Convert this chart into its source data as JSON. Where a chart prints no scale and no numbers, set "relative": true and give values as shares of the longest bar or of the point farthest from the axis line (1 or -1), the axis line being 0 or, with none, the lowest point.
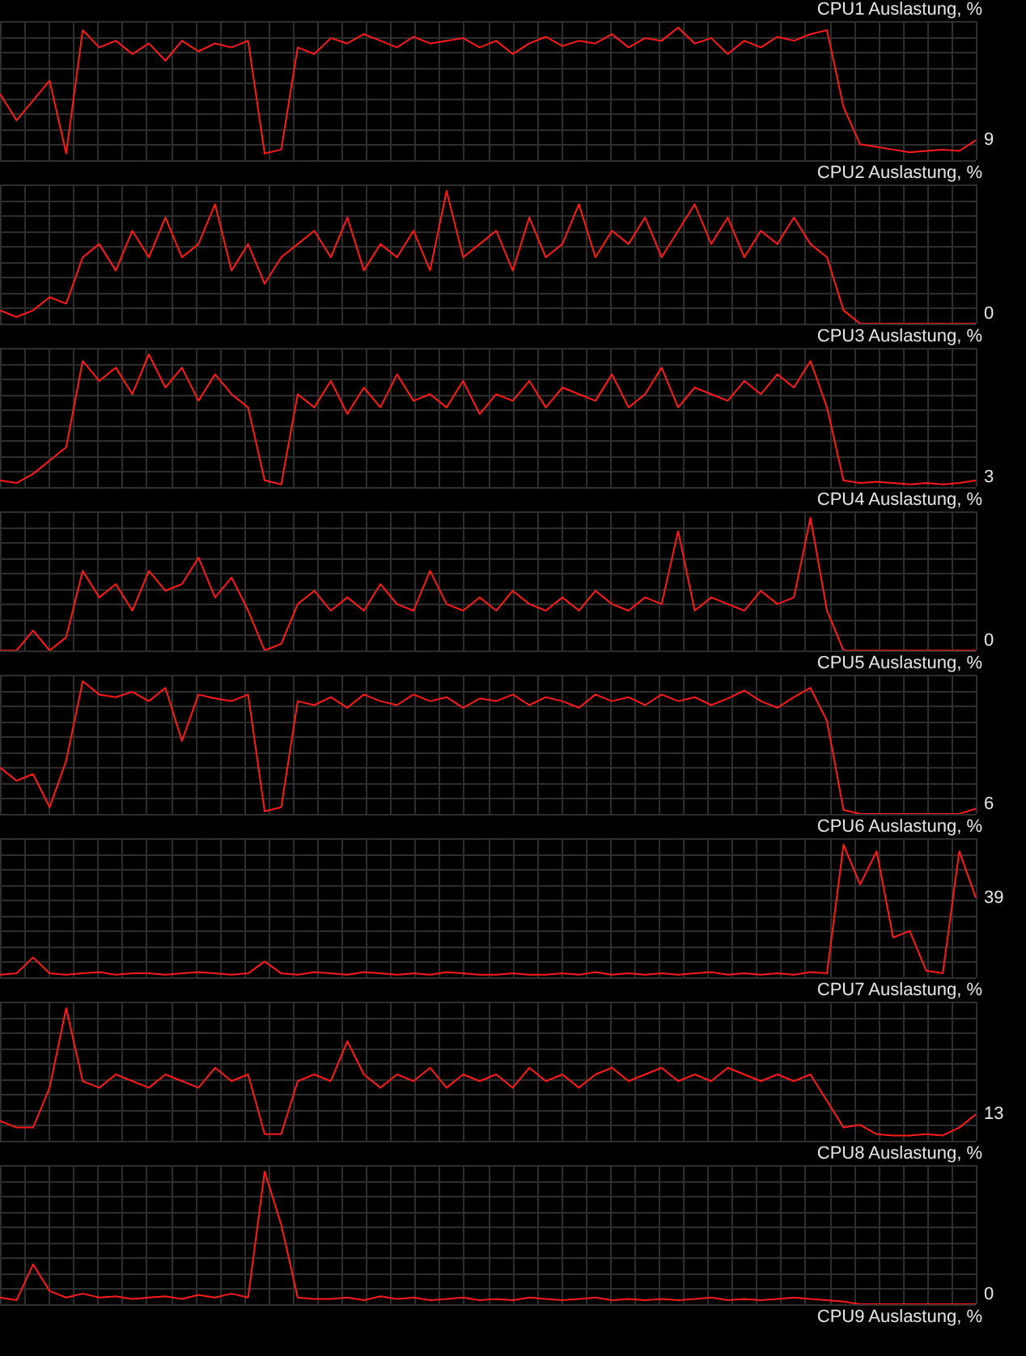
{
  "chart_data": [
    {
      "type": "line",
      "title": "CPU1 Auslastung, %",
      "relative": true,
      "grid": true,
      "annotations": [
        "9"
      ],
      "categories": [
        null,
        null,
        null,
        null,
        null,
        null,
        null,
        null,
        null,
        null,
        null,
        null,
        null,
        null,
        null,
        null,
        null,
        null,
        null,
        null,
        null,
        null,
        null,
        null,
        null,
        null,
        null,
        null,
        null,
        null,
        null,
        null,
        null,
        null,
        null,
        null,
        null,
        null,
        null,
        null,
        null,
        null,
        null,
        null,
        null,
        null,
        null,
        null,
        null,
        null,
        null,
        null,
        null,
        null,
        null,
        null,
        null,
        null,
        null,
        null
      ],
      "series": [
        {
          "color": "#ff1a1a",
          "values": [
            0.5,
            0.3,
            0.45,
            0.6,
            0.05,
            0.98,
            0.85,
            0.9,
            0.8,
            0.88,
            0.75,
            0.9,
            0.82,
            0.88,
            0.85,
            0.9,
            0.05,
            0.08,
            0.85,
            0.8,
            0.92,
            0.88,
            0.95,
            0.9,
            0.85,
            0.93,
            0.88,
            0.9,
            0.92,
            0.85,
            0.9,
            0.8,
            0.88,
            0.93,
            0.86,
            0.9,
            0.88,
            0.95,
            0.85,
            0.92,
            0.9,
            1,
            0.88,
            0.92,
            0.8,
            0.9,
            0.85,
            0.93,
            0.9,
            0.95,
            0.98,
            0.4,
            0.12,
            0.1,
            0.08,
            0.06,
            0.07,
            0.08,
            0.07,
            0.15
          ]
        }
      ]
    },
    {
      "type": "line",
      "title": "CPU2 Auslastung, %",
      "relative": true,
      "grid": true,
      "annotations": [
        "0"
      ],
      "categories": [
        null,
        null,
        null,
        null,
        null,
        null,
        null,
        null,
        null,
        null,
        null,
        null,
        null,
        null,
        null,
        null,
        null,
        null,
        null,
        null,
        null,
        null,
        null,
        null,
        null,
        null,
        null,
        null,
        null,
        null,
        null,
        null,
        null,
        null,
        null,
        null,
        null,
        null,
        null,
        null,
        null,
        null,
        null,
        null,
        null,
        null,
        null,
        null,
        null,
        null,
        null,
        null,
        null,
        null,
        null,
        null,
        null,
        null,
        null,
        null
      ],
      "series": [
        {
          "color": "#ff1a1a",
          "values": [
            0.1,
            0.05,
            0.1,
            0.2,
            0.15,
            0.5,
            0.6,
            0.4,
            0.7,
            0.5,
            0.8,
            0.5,
            0.6,
            0.9,
            0.4,
            0.6,
            0.3,
            0.5,
            0.6,
            0.7,
            0.5,
            0.8,
            0.4,
            0.6,
            0.5,
            0.7,
            0.4,
            1,
            0.5,
            0.6,
            0.7,
            0.4,
            0.8,
            0.5,
            0.6,
            0.9,
            0.5,
            0.7,
            0.6,
            0.8,
            0.5,
            0.7,
            0.9,
            0.6,
            0.8,
            0.5,
            0.7,
            0.6,
            0.8,
            0.6,
            0.5,
            0.1,
            0,
            0,
            0,
            0,
            0,
            0,
            0,
            0
          ]
        }
      ]
    },
    {
      "type": "line",
      "title": "CPU3 Auslastung, %",
      "relative": true,
      "grid": true,
      "annotations": [
        "3"
      ],
      "categories": [
        null,
        null,
        null,
        null,
        null,
        null,
        null,
        null,
        null,
        null,
        null,
        null,
        null,
        null,
        null,
        null,
        null,
        null,
        null,
        null,
        null,
        null,
        null,
        null,
        null,
        null,
        null,
        null,
        null,
        null,
        null,
        null,
        null,
        null,
        null,
        null,
        null,
        null,
        null,
        null,
        null,
        null,
        null,
        null,
        null,
        null,
        null,
        null,
        null,
        null,
        null,
        null,
        null,
        null,
        null,
        null,
        null,
        null,
        null,
        null
      ],
      "series": [
        {
          "color": "#ff1a1a",
          "values": [
            0.05,
            0.03,
            0.1,
            0.2,
            0.3,
            0.95,
            0.8,
            0.9,
            0.7,
            1,
            0.75,
            0.9,
            0.65,
            0.85,
            0.7,
            0.6,
            0.05,
            0.02,
            0.7,
            0.6,
            0.8,
            0.55,
            0.75,
            0.6,
            0.85,
            0.65,
            0.7,
            0.6,
            0.8,
            0.55,
            0.7,
            0.65,
            0.8,
            0.6,
            0.75,
            0.7,
            0.65,
            0.85,
            0.6,
            0.7,
            0.9,
            0.6,
            0.75,
            0.7,
            0.65,
            0.8,
            0.7,
            0.85,
            0.75,
            0.95,
            0.6,
            0.05,
            0.03,
            0.04,
            0.03,
            0.02,
            0.03,
            0.02,
            0.03,
            0.05
          ]
        }
      ]
    },
    {
      "type": "line",
      "title": "CPU4 Auslastung, %",
      "relative": true,
      "grid": true,
      "annotations": [
        "0"
      ],
      "categories": [
        null,
        null,
        null,
        null,
        null,
        null,
        null,
        null,
        null,
        null,
        null,
        null,
        null,
        null,
        null,
        null,
        null,
        null,
        null,
        null,
        null,
        null,
        null,
        null,
        null,
        null,
        null,
        null,
        null,
        null,
        null,
        null,
        null,
        null,
        null,
        null,
        null,
        null,
        null,
        null,
        null,
        null,
        null,
        null,
        null,
        null,
        null,
        null,
        null,
        null,
        null,
        null,
        null,
        null,
        null,
        null,
        null,
        null,
        null,
        null
      ],
      "series": [
        {
          "color": "#ff1a1a",
          "values": [
            0,
            0,
            0.15,
            0,
            0.1,
            0.6,
            0.4,
            0.5,
            0.3,
            0.6,
            0.45,
            0.5,
            0.7,
            0.4,
            0.55,
            0.3,
            0,
            0.05,
            0.35,
            0.45,
            0.3,
            0.4,
            0.3,
            0.5,
            0.35,
            0.3,
            0.6,
            0.35,
            0.3,
            0.4,
            0.3,
            0.45,
            0.35,
            0.3,
            0.4,
            0.3,
            0.45,
            0.35,
            0.3,
            0.4,
            0.35,
            0.9,
            0.3,
            0.4,
            0.35,
            0.3,
            0.45,
            0.35,
            0.4,
            1,
            0.3,
            0,
            0,
            0,
            0,
            0,
            0,
            0,
            0,
            0
          ]
        }
      ]
    },
    {
      "type": "line",
      "title": "CPU5 Auslastung, %",
      "relative": true,
      "grid": true,
      "annotations": [
        "6"
      ],
      "categories": [
        null,
        null,
        null,
        null,
        null,
        null,
        null,
        null,
        null,
        null,
        null,
        null,
        null,
        null,
        null,
        null,
        null,
        null,
        null,
        null,
        null,
        null,
        null,
        null,
        null,
        null,
        null,
        null,
        null,
        null,
        null,
        null,
        null,
        null,
        null,
        null,
        null,
        null,
        null,
        null,
        null,
        null,
        null,
        null,
        null,
        null,
        null,
        null,
        null,
        null,
        null,
        null,
        null,
        null,
        null,
        null,
        null,
        null,
        null,
        null
      ],
      "series": [
        {
          "color": "#ff1a1a",
          "values": [
            0.35,
            0.25,
            0.3,
            0.05,
            0.4,
            1,
            0.9,
            0.88,
            0.92,
            0.85,
            0.95,
            0.55,
            0.9,
            0.87,
            0.85,
            0.9,
            0.02,
            0.05,
            0.85,
            0.82,
            0.88,
            0.8,
            0.9,
            0.85,
            0.82,
            0.9,
            0.85,
            0.88,
            0.8,
            0.87,
            0.85,
            0.9,
            0.82,
            0.88,
            0.85,
            0.8,
            0.9,
            0.85,
            0.88,
            0.82,
            0.9,
            0.85,
            0.88,
            0.82,
            0.87,
            0.93,
            0.85,
            0.8,
            0.88,
            0.95,
            0.7,
            0.03,
            0,
            0,
            0,
            0,
            0,
            0,
            0,
            0.04
          ]
        }
      ]
    },
    {
      "type": "line",
      "title": "CPU6 Auslastung, %",
      "relative": true,
      "grid": true,
      "annotations": [
        "39"
      ],
      "categories": [
        null,
        null,
        null,
        null,
        null,
        null,
        null,
        null,
        null,
        null,
        null,
        null,
        null,
        null,
        null,
        null,
        null,
        null,
        null,
        null,
        null,
        null,
        null,
        null,
        null,
        null,
        null,
        null,
        null,
        null,
        null,
        null,
        null,
        null,
        null,
        null,
        null,
        null,
        null,
        null,
        null,
        null,
        null,
        null,
        null,
        null,
        null,
        null,
        null,
        null,
        null,
        null,
        null,
        null,
        null,
        null,
        null,
        null,
        null,
        null
      ],
      "series": [
        {
          "color": "#ff1a1a",
          "values": [
            0.02,
            0.03,
            0.15,
            0.03,
            0.02,
            0.03,
            0.04,
            0.02,
            0.03,
            0.03,
            0.02,
            0.03,
            0.04,
            0.03,
            0.02,
            0.03,
            0.12,
            0.03,
            0.02,
            0.04,
            0.03,
            0.02,
            0.04,
            0.03,
            0.02,
            0.03,
            0.02,
            0.04,
            0.03,
            0.02,
            0.02,
            0.03,
            0.02,
            0.02,
            0.03,
            0.02,
            0.04,
            0.02,
            0.03,
            0.02,
            0.03,
            0.02,
            0.03,
            0.04,
            0.02,
            0.03,
            0.02,
            0.03,
            0.02,
            0.04,
            0.03,
            1,
            0.7,
            0.95,
            0.3,
            0.35,
            0.05,
            0.03,
            0.95,
            0.6
          ]
        }
      ]
    },
    {
      "type": "line",
      "title": "CPU7 Auslastung, %",
      "relative": true,
      "grid": true,
      "annotations": [
        "13"
      ],
      "categories": [
        null,
        null,
        null,
        null,
        null,
        null,
        null,
        null,
        null,
        null,
        null,
        null,
        null,
        null,
        null,
        null,
        null,
        null,
        null,
        null,
        null,
        null,
        null,
        null,
        null,
        null,
        null,
        null,
        null,
        null,
        null,
        null,
        null,
        null,
        null,
        null,
        null,
        null,
        null,
        null,
        null,
        null,
        null,
        null,
        null,
        null,
        null,
        null,
        null,
        null,
        null,
        null,
        null,
        null,
        null,
        null,
        null,
        null,
        null,
        null
      ],
      "series": [
        {
          "color": "#ff1a1a",
          "values": [
            0.15,
            0.1,
            0.1,
            0.4,
            1,
            0.45,
            0.4,
            0.5,
            0.45,
            0.4,
            0.5,
            0.45,
            0.4,
            0.55,
            0.45,
            0.5,
            0.05,
            0.05,
            0.45,
            0.5,
            0.45,
            0.75,
            0.5,
            0.4,
            0.5,
            0.45,
            0.55,
            0.4,
            0.5,
            0.45,
            0.5,
            0.4,
            0.55,
            0.45,
            0.5,
            0.4,
            0.5,
            0.55,
            0.45,
            0.5,
            0.55,
            0.45,
            0.5,
            0.45,
            0.55,
            0.5,
            0.45,
            0.5,
            0.45,
            0.5,
            0.3,
            0.1,
            0.12,
            0.05,
            0.04,
            0.04,
            0.05,
            0.04,
            0.1,
            0.2
          ]
        }
      ]
    },
    {
      "type": "line",
      "title": "CPU8 Auslastung, %",
      "relative": true,
      "grid": true,
      "annotations": [
        "0"
      ],
      "categories": [
        null,
        null,
        null,
        null,
        null,
        null,
        null,
        null,
        null,
        null,
        null,
        null,
        null,
        null,
        null,
        null,
        null,
        null,
        null,
        null,
        null,
        null,
        null,
        null,
        null,
        null,
        null,
        null,
        null,
        null,
        null,
        null,
        null,
        null,
        null,
        null,
        null,
        null,
        null,
        null,
        null,
        null,
        null,
        null,
        null,
        null,
        null,
        null,
        null,
        null,
        null,
        null,
        null,
        null,
        null,
        null,
        null,
        null,
        null,
        null
      ],
      "series": [
        {
          "color": "#ff1a1a",
          "values": [
            0.05,
            0.03,
            0.3,
            0.1,
            0.05,
            0.08,
            0.05,
            0.06,
            0.04,
            0.05,
            0.06,
            0.04,
            0.07,
            0.05,
            0.08,
            0.05,
            1,
            0.6,
            0.05,
            0.04,
            0.04,
            0.05,
            0.03,
            0.06,
            0.04,
            0.05,
            0.03,
            0.04,
            0.05,
            0.03,
            0.04,
            0.03,
            0.05,
            0.04,
            0.03,
            0.04,
            0.05,
            0.03,
            0.04,
            0.03,
            0.04,
            0.03,
            0.04,
            0.05,
            0.03,
            0.04,
            0.03,
            0.04,
            0.05,
            0.04,
            0.03,
            0.02,
            0,
            0,
            0,
            0,
            0,
            0,
            0,
            0
          ]
        }
      ]
    },
    {
      "type": "other",
      "title": "CPU9 Auslastung, %"
    }
  ]
}
